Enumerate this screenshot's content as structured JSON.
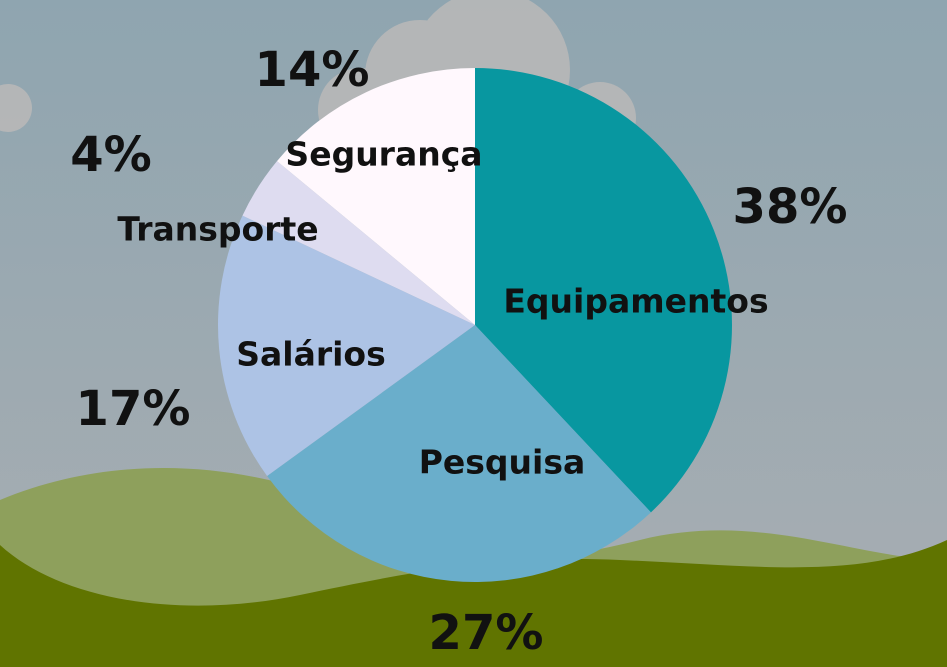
{
  "chart_data": {
    "type": "pie",
    "title": "",
    "slices": [
      {
        "label": "Equipamentos",
        "value": 38,
        "value_label": "38%",
        "color": "#0897a0"
      },
      {
        "label": "Pesquisa",
        "value": 27,
        "value_label": "27%",
        "color": "#6aaecb"
      },
      {
        "label": "Salários",
        "value": 17,
        "value_label": "17%",
        "color": "#adc3e5"
      },
      {
        "label": "Transporte",
        "value": 4,
        "value_label": "4%",
        "color": "#dedcf0"
      },
      {
        "label": "Segurança",
        "value": 14,
        "value_label": "14%",
        "color": "#fff8fd"
      }
    ],
    "legend": "none"
  },
  "background": {
    "sky_color": "#93a6ad",
    "cloud_color": "#b8b8b8",
    "hill_light_color": "#8ea05c",
    "hill_dark_color": "#607400"
  }
}
